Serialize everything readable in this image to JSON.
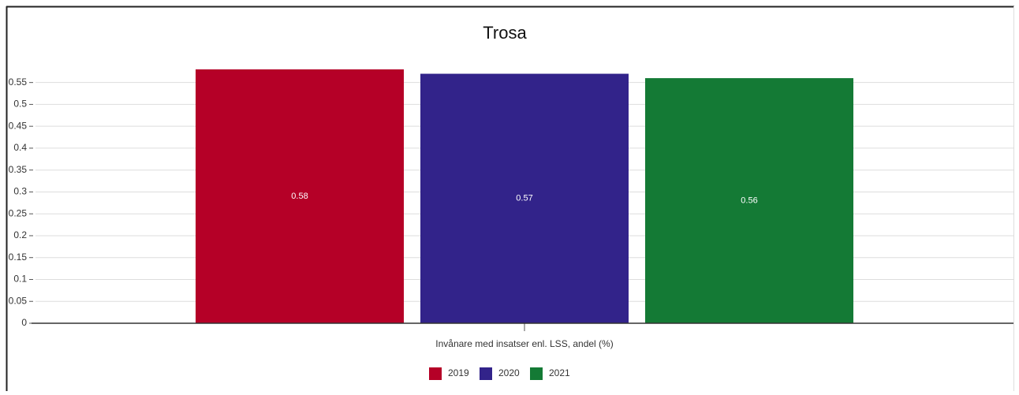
{
  "chart_data": {
    "type": "bar",
    "title": "Trosa",
    "categories": [
      "Invånare med insatser enl. LSS, andel (%)"
    ],
    "series": [
      {
        "name": "2019",
        "color": "#b50027",
        "values": [
          0.58
        ]
      },
      {
        "name": "2020",
        "color": "#32238a",
        "values": [
          0.57
        ]
      },
      {
        "name": "2021",
        "color": "#147a35",
        "values": [
          0.56
        ]
      }
    ],
    "ylim": [
      0,
      0.58
    ],
    "yticks": [
      0,
      0.05,
      0.1,
      0.15,
      0.2,
      0.25,
      0.3,
      0.35,
      0.4,
      0.45,
      0.5,
      0.55
    ],
    "grid": true,
    "legend": "bottom"
  }
}
